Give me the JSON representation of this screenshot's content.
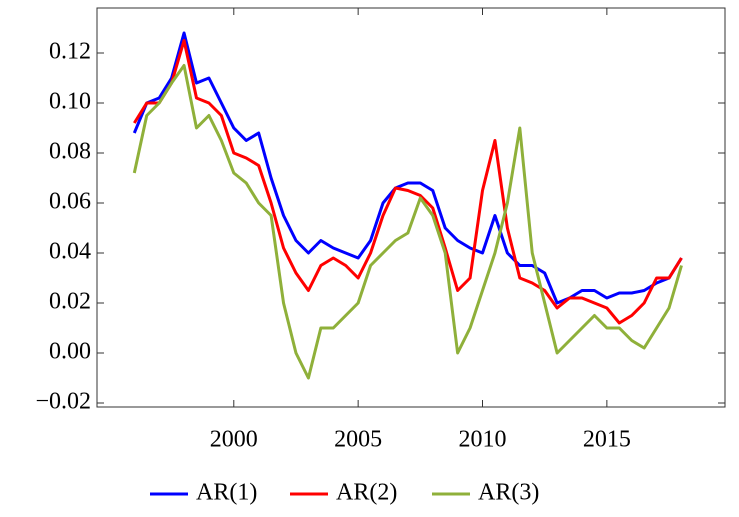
{
  "chart_data": {
    "type": "line",
    "x": [
      1996.0,
      1996.5,
      1997.0,
      1997.5,
      1998.0,
      1998.5,
      1999.0,
      1999.5,
      2000.0,
      2000.5,
      2001.0,
      2001.5,
      2002.0,
      2002.5,
      2003.0,
      2003.5,
      2004.0,
      2004.5,
      2005.0,
      2005.5,
      2006.0,
      2006.5,
      2007.0,
      2007.5,
      2008.0,
      2008.5,
      2009.0,
      2009.5,
      2010.0,
      2010.5,
      2011.0,
      2011.5,
      2012.0,
      2012.5,
      2013.0,
      2013.5,
      2014.0,
      2014.5,
      2015.0,
      2015.5,
      2016.0,
      2016.5,
      2017.0,
      2017.5,
      2018.0
    ],
    "series": [
      {
        "name": "AR(1)",
        "color": "#0000ff",
        "values": [
          0.088,
          0.1,
          0.102,
          0.11,
          0.128,
          0.108,
          0.11,
          0.1,
          0.09,
          0.085,
          0.088,
          0.07,
          0.055,
          0.045,
          0.04,
          0.045,
          0.042,
          0.04,
          0.038,
          0.045,
          0.06,
          0.066,
          0.068,
          0.068,
          0.065,
          0.05,
          0.045,
          0.042,
          0.04,
          0.055,
          0.04,
          0.035,
          0.035,
          0.032,
          0.02,
          0.022,
          0.025,
          0.025,
          0.022,
          0.024,
          0.024,
          0.025,
          0.028,
          0.03,
          0.038
        ]
      },
      {
        "name": "AR(2)",
        "color": "#ff0000",
        "values": [
          0.092,
          0.1,
          0.1,
          0.108,
          0.125,
          0.102,
          0.1,
          0.095,
          0.08,
          0.078,
          0.075,
          0.06,
          0.042,
          0.032,
          0.025,
          0.035,
          0.038,
          0.035,
          0.03,
          0.04,
          0.055,
          0.066,
          0.065,
          0.063,
          0.058,
          0.042,
          0.025,
          0.03,
          0.065,
          0.085,
          0.05,
          0.03,
          0.028,
          0.025,
          0.018,
          0.022,
          0.022,
          0.02,
          0.018,
          0.012,
          0.015,
          0.02,
          0.03,
          0.03,
          0.038
        ]
      },
      {
        "name": "AR(3)",
        "color": "#8fb03a",
        "values": [
          0.072,
          0.095,
          0.1,
          0.108,
          0.115,
          0.09,
          0.095,
          0.085,
          0.072,
          0.068,
          0.06,
          0.055,
          0.02,
          0.0,
          -0.01,
          0.01,
          0.01,
          0.015,
          0.02,
          0.035,
          0.04,
          0.045,
          0.048,
          0.062,
          0.055,
          0.04,
          0.0,
          0.01,
          0.025,
          0.04,
          0.06,
          0.09,
          0.04,
          0.02,
          0.0,
          0.005,
          0.01,
          0.015,
          0.01,
          0.01,
          0.005,
          0.002,
          0.01,
          0.018,
          0.035
        ]
      }
    ],
    "xlim": [
      1994.5,
      2019.75
    ],
    "ylim": [
      -0.0216,
      0.138
    ],
    "xticks": [
      2000,
      2005,
      2010,
      2015
    ],
    "yticks": [
      {
        "value": -0.02,
        "label": "−0.02"
      },
      {
        "value": 0,
        "label": "0.00"
      },
      0.02,
      0.04,
      0.06,
      0.08,
      {
        "value": 0.1,
        "label": "0.10"
      },
      0.12
    ]
  }
}
